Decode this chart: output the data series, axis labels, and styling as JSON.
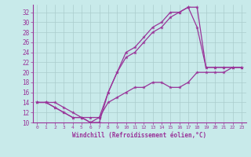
{
  "xlabel": "Windchill (Refroidissement éolien,°C)",
  "bg_color": "#c8eaea",
  "grid_color": "#aacccc",
  "line_color": "#993399",
  "xlim": [
    -0.5,
    23.5
  ],
  "ylim": [
    10,
    33.5
  ],
  "xticks": [
    0,
    1,
    2,
    3,
    4,
    5,
    6,
    7,
    8,
    9,
    10,
    11,
    12,
    13,
    14,
    15,
    16,
    17,
    18,
    19,
    20,
    21,
    22,
    23
  ],
  "yticks": [
    10,
    12,
    14,
    16,
    18,
    20,
    22,
    24,
    26,
    28,
    30,
    32
  ],
  "line1_x": [
    0,
    1,
    2,
    3,
    4,
    5,
    6,
    7,
    8,
    9,
    10,
    11,
    12,
    13,
    14,
    15,
    16,
    17,
    18,
    19,
    20,
    21,
    22,
    23
  ],
  "line1_y": [
    14,
    14,
    14,
    13,
    12,
    11,
    11,
    11,
    16,
    20,
    24,
    25,
    27,
    29,
    30,
    32,
    32,
    33,
    33,
    21,
    21,
    21,
    21,
    21
  ],
  "line2_x": [
    0,
    1,
    2,
    3,
    4,
    5,
    6,
    7,
    8,
    9,
    10,
    11,
    12,
    13,
    14,
    15,
    16,
    17,
    18,
    19,
    20,
    21,
    22,
    23
  ],
  "line2_y": [
    14,
    14,
    13,
    12,
    11,
    11,
    10,
    10,
    16,
    20,
    23,
    24,
    26,
    28,
    29,
    31,
    32,
    33,
    29,
    21,
    21,
    21,
    21,
    21
  ],
  "line3_x": [
    0,
    1,
    2,
    3,
    4,
    5,
    6,
    7,
    8,
    9,
    10,
    11,
    12,
    13,
    14,
    15,
    16,
    17,
    18,
    19,
    20,
    21,
    22,
    23
  ],
  "line3_y": [
    14,
    14,
    13,
    12,
    11,
    11,
    10,
    11,
    14,
    15,
    16,
    17,
    17,
    18,
    18,
    17,
    17,
    18,
    20,
    20,
    20,
    20,
    21,
    21
  ]
}
